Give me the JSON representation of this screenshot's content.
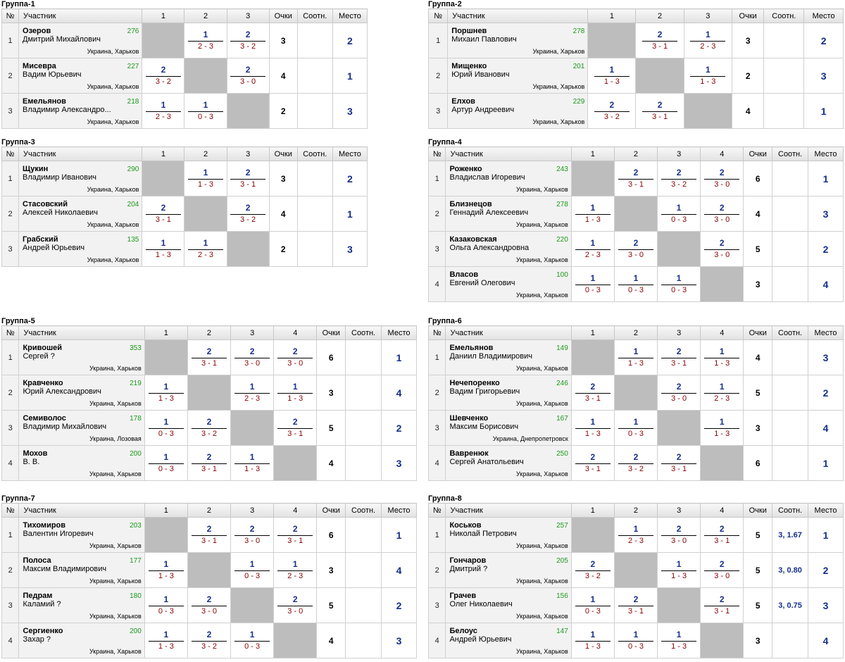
{
  "headers": {
    "num": "№",
    "player": "Участник",
    "points": "Очки",
    "ratio": "Соотн.",
    "place": "Место"
  },
  "groups": [
    {
      "title": "Группа-1",
      "n": 3,
      "players": [
        {
          "last": "Озеров",
          "first": "Дмитрий Михайлович",
          "rating": "276",
          "loc": "Украина, Харьков",
          "results": [
            null,
            {
              "w": "1",
              "s": "2 - 3"
            },
            {
              "w": "2",
              "s": "3 - 2"
            }
          ],
          "points": "3",
          "ratio": "",
          "place": "2"
        },
        {
          "last": "Мисевра",
          "first": "Вадим Юрьевич",
          "rating": "227",
          "loc": "Украина, Харьков",
          "results": [
            {
              "w": "2",
              "s": "3 - 2"
            },
            null,
            {
              "w": "2",
              "s": "3 - 0"
            }
          ],
          "points": "4",
          "ratio": "",
          "place": "1"
        },
        {
          "last": "Емельянов",
          "first": "Владимир Александро...",
          "rating": "218",
          "loc": "Украина, Харьков",
          "results": [
            {
              "w": "1",
              "s": "2 - 3"
            },
            {
              "w": "1",
              "s": "0 - 3"
            },
            null
          ],
          "points": "2",
          "ratio": "",
          "place": "3"
        }
      ]
    },
    {
      "title": "Группа-2",
      "n": 3,
      "players": [
        {
          "last": "Поршнев",
          "first": "Михаил Павлович",
          "rating": "278",
          "loc": "Украина, Харьков",
          "results": [
            null,
            {
              "w": "2",
              "s": "3 - 1"
            },
            {
              "w": "1",
              "s": "2 - 3"
            }
          ],
          "points": "3",
          "ratio": "",
          "place": "2"
        },
        {
          "last": "Мищенко",
          "first": "Юрий Иванович",
          "rating": "201",
          "loc": "Украина, Харьков",
          "results": [
            {
              "w": "1",
              "s": "1 - 3"
            },
            null,
            {
              "w": "1",
              "s": "1 - 3"
            }
          ],
          "points": "2",
          "ratio": "",
          "place": "3"
        },
        {
          "last": "Елхов",
          "first": "Артур Андреевич",
          "rating": "229",
          "loc": "Украина, Харьков",
          "results": [
            {
              "w": "2",
              "s": "3 - 2"
            },
            {
              "w": "2",
              "s": "3 - 1"
            },
            null
          ],
          "points": "4",
          "ratio": "",
          "place": "1"
        }
      ]
    },
    {
      "title": "Группа-3",
      "n": 3,
      "players": [
        {
          "last": "Щукин",
          "first": "Владимир Иванович",
          "rating": "290",
          "loc": "Украина, Харьков",
          "results": [
            null,
            {
              "w": "1",
              "s": "1 - 3"
            },
            {
              "w": "2",
              "s": "3 - 1"
            }
          ],
          "points": "3",
          "ratio": "",
          "place": "2"
        },
        {
          "last": "Стасовский",
          "first": "Алексей Николаевич",
          "rating": "204",
          "loc": "Украина, Харьков",
          "results": [
            {
              "w": "2",
              "s": "3 - 1"
            },
            null,
            {
              "w": "2",
              "s": "3 - 2"
            }
          ],
          "points": "4",
          "ratio": "",
          "place": "1"
        },
        {
          "last": "Грабский",
          "first": "Андрей Юрьевич",
          "rating": "135",
          "loc": "Украина, Харьков",
          "results": [
            {
              "w": "1",
              "s": "1 - 3"
            },
            {
              "w": "1",
              "s": "2 - 3"
            },
            null
          ],
          "points": "2",
          "ratio": "",
          "place": "3"
        }
      ]
    },
    {
      "title": "Группа-4",
      "n": 4,
      "players": [
        {
          "last": "Роженко",
          "first": "Владислав Игоревич",
          "rating": "243",
          "loc": "Украина, Харьков",
          "results": [
            null,
            {
              "w": "2",
              "s": "3 - 1"
            },
            {
              "w": "2",
              "s": "3 - 2"
            },
            {
              "w": "2",
              "s": "3 - 0"
            }
          ],
          "points": "6",
          "ratio": "",
          "place": "1"
        },
        {
          "last": "Близнецов",
          "first": "Геннадий Алексеевич",
          "rating": "278",
          "loc": "Украина, Харьков",
          "results": [
            {
              "w": "1",
              "s": "1 - 3"
            },
            null,
            {
              "w": "1",
              "s": "0 - 3"
            },
            {
              "w": "2",
              "s": "3 - 0"
            }
          ],
          "points": "4",
          "ratio": "",
          "place": "3"
        },
        {
          "last": "Казаковская",
          "first": "Ольга Александровна",
          "rating": "220",
          "loc": "Украина, Харьков",
          "results": [
            {
              "w": "1",
              "s": "2 - 3"
            },
            {
              "w": "2",
              "s": "3 - 0"
            },
            null,
            {
              "w": "2",
              "s": "3 - 0"
            }
          ],
          "points": "5",
          "ratio": "",
          "place": "2"
        },
        {
          "last": "Власов",
          "first": "Евгений Олегович",
          "rating": "100",
          "loc": "Украина, Харьков",
          "results": [
            {
              "w": "1",
              "s": "0 - 3"
            },
            {
              "w": "1",
              "s": "0 - 3"
            },
            {
              "w": "1",
              "s": "0 - 3"
            },
            null
          ],
          "points": "3",
          "ratio": "",
          "place": "4"
        }
      ]
    },
    {
      "title": "Группа-5",
      "n": 4,
      "players": [
        {
          "last": "Кривошей",
          "first": "Сергей ?",
          "rating": "353",
          "loc": "Украина, Харьков",
          "results": [
            null,
            {
              "w": "2",
              "s": "3 - 1"
            },
            {
              "w": "2",
              "s": "3 - 0"
            },
            {
              "w": "2",
              "s": "3 - 0"
            }
          ],
          "points": "6",
          "ratio": "",
          "place": "1"
        },
        {
          "last": "Кравченко",
          "first": "Юрий Александрович",
          "rating": "219",
          "loc": "Украина, Харьков",
          "results": [
            {
              "w": "1",
              "s": "1 - 3"
            },
            null,
            {
              "w": "1",
              "s": "2 - 3"
            },
            {
              "w": "1",
              "s": "1 - 3"
            }
          ],
          "points": "3",
          "ratio": "",
          "place": "4"
        },
        {
          "last": "Семиволос",
          "first": "Владимир Михайлович",
          "rating": "178",
          "loc": "Украина, Лозовая",
          "results": [
            {
              "w": "1",
              "s": "0 - 3"
            },
            {
              "w": "2",
              "s": "3 - 2"
            },
            null,
            {
              "w": "2",
              "s": "3 - 1"
            }
          ],
          "points": "5",
          "ratio": "",
          "place": "2"
        },
        {
          "last": "Мохов",
          "first": "В. В.",
          "rating": "200",
          "loc": "Украина, Харьков",
          "results": [
            {
              "w": "1",
              "s": "0 - 3"
            },
            {
              "w": "2",
              "s": "3 - 1"
            },
            {
              "w": "1",
              "s": "1 - 3"
            },
            null
          ],
          "points": "4",
          "ratio": "",
          "place": "3"
        }
      ]
    },
    {
      "title": "Группа-6",
      "n": 4,
      "players": [
        {
          "last": "Емельянов",
          "first": "Даниил Владимирович",
          "rating": "149",
          "loc": "Украина, Харьков",
          "results": [
            null,
            {
              "w": "1",
              "s": "1 - 3"
            },
            {
              "w": "2",
              "s": "3 - 1"
            },
            {
              "w": "1",
              "s": "1 - 3"
            }
          ],
          "points": "4",
          "ratio": "",
          "place": "3"
        },
        {
          "last": "Нечепоренко",
          "first": "Вадим Григорьевич",
          "rating": "246",
          "loc": "Украина, Харьков",
          "results": [
            {
              "w": "2",
              "s": "3 - 1"
            },
            null,
            {
              "w": "2",
              "s": "3 - 0"
            },
            {
              "w": "1",
              "s": "2 - 3"
            }
          ],
          "points": "5",
          "ratio": "",
          "place": "2"
        },
        {
          "last": "Шевченко",
          "first": "Максим Борисович",
          "rating": "167",
          "loc": "Украина, Днепропетровск",
          "results": [
            {
              "w": "1",
              "s": "1 - 3"
            },
            {
              "w": "1",
              "s": "0 - 3"
            },
            null,
            {
              "w": "1",
              "s": "1 - 3"
            }
          ],
          "points": "3",
          "ratio": "",
          "place": "4"
        },
        {
          "last": "Вавренюк",
          "first": "Сергей Анатольевич",
          "rating": "250",
          "loc": "Украина, Харьков",
          "results": [
            {
              "w": "2",
              "s": "3 - 1"
            },
            {
              "w": "2",
              "s": "3 - 2"
            },
            {
              "w": "2",
              "s": "3 - 1"
            },
            null
          ],
          "points": "6",
          "ratio": "",
          "place": "1"
        }
      ]
    },
    {
      "title": "Группа-7",
      "n": 4,
      "players": [
        {
          "last": "Тихомиров",
          "first": "Валентин Игоревич",
          "rating": "203",
          "loc": "Украина, Харьков",
          "results": [
            null,
            {
              "w": "2",
              "s": "3 - 1"
            },
            {
              "w": "2",
              "s": "3 - 0"
            },
            {
              "w": "2",
              "s": "3 - 1"
            }
          ],
          "points": "6",
          "ratio": "",
          "place": "1"
        },
        {
          "last": "Полоса",
          "first": "Максим Владимирович",
          "rating": "177",
          "loc": "Украина, Харьков",
          "results": [
            {
              "w": "1",
              "s": "1 - 3"
            },
            null,
            {
              "w": "1",
              "s": "0 - 3"
            },
            {
              "w": "1",
              "s": "2 - 3"
            }
          ],
          "points": "3",
          "ratio": "",
          "place": "4"
        },
        {
          "last": "Педрам",
          "first": "Каламий ?",
          "rating": "180",
          "loc": "Украина, Харьков",
          "results": [
            {
              "w": "1",
              "s": "0 - 3"
            },
            {
              "w": "2",
              "s": "3 - 0"
            },
            null,
            {
              "w": "2",
              "s": "3 - 0"
            }
          ],
          "points": "5",
          "ratio": "",
          "place": "2"
        },
        {
          "last": "Сергиенко",
          "first": "Захар ?",
          "rating": "200",
          "loc": "Украина, Харьков",
          "results": [
            {
              "w": "1",
              "s": "1 - 3"
            },
            {
              "w": "2",
              "s": "3 - 2"
            },
            {
              "w": "1",
              "s": "0 - 3"
            },
            null
          ],
          "points": "4",
          "ratio": "",
          "place": "3"
        }
      ]
    },
    {
      "title": "Группа-8",
      "n": 4,
      "players": [
        {
          "last": "Коськов",
          "first": "Николай Петрович",
          "rating": "257",
          "loc": "Украина, Харьков",
          "results": [
            null,
            {
              "w": "1",
              "s": "2 - 3"
            },
            {
              "w": "2",
              "s": "3 - 0"
            },
            {
              "w": "2",
              "s": "3 - 1"
            }
          ],
          "points": "5",
          "ratio": "3, 1.67",
          "place": "1"
        },
        {
          "last": "Гончаров",
          "first": "Дмитрий ?",
          "rating": "205",
          "loc": "Украина, Харьков",
          "results": [
            {
              "w": "2",
              "s": "3 - 2"
            },
            null,
            {
              "w": "1",
              "s": "1 - 3"
            },
            {
              "w": "2",
              "s": "3 - 0"
            }
          ],
          "points": "5",
          "ratio": "3, 0.80",
          "place": "2"
        },
        {
          "last": "Грачев",
          "first": "Олег Николаевич",
          "rating": "156",
          "loc": "Украина, Харьков",
          "results": [
            {
              "w": "1",
              "s": "0 - 3"
            },
            {
              "w": "2",
              "s": "3 - 1"
            },
            null,
            {
              "w": "2",
              "s": "3 - 1"
            }
          ],
          "points": "5",
          "ratio": "3, 0.75",
          "place": "3"
        },
        {
          "last": "Белоус",
          "first": "Андрей Юрьевич",
          "rating": "147",
          "loc": "Украина, Харьков",
          "results": [
            {
              "w": "1",
              "s": "1 - 3"
            },
            {
              "w": "1",
              "s": "0 - 3"
            },
            {
              "w": "1",
              "s": "1 - 3"
            },
            null
          ],
          "points": "3",
          "ratio": "",
          "place": "4"
        }
      ]
    }
  ]
}
